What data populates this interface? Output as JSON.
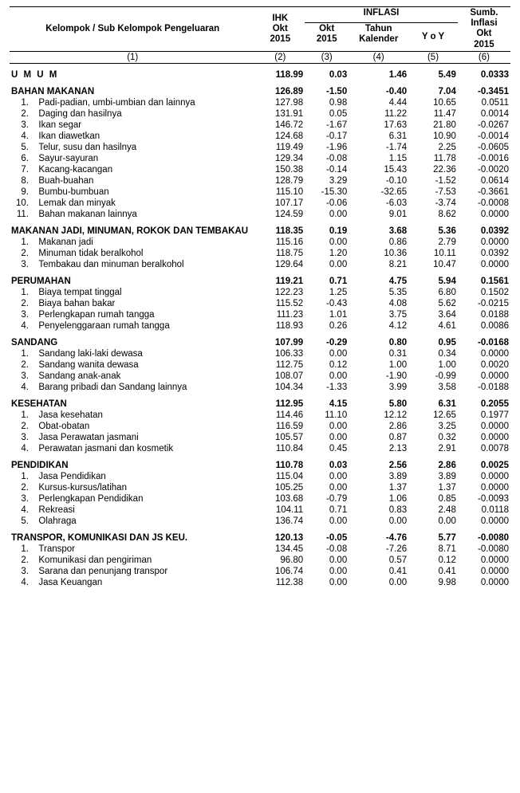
{
  "headers": {
    "groupLabel": "Kelompok / Sub Kelompok Pengeluaran",
    "ihk": "IHK\nOkt\n2015",
    "inflasiTop": "INFLASI",
    "okt": "Okt\n2015",
    "kalender": "Tahun\nKalender",
    "yoy": "Y o Y",
    "sumb": "Sumb.\nInflasi\nOkt\n2015",
    "colnums": [
      "(1)",
      "(2)",
      "(3)",
      "(4)",
      "(5)",
      "(6)"
    ]
  },
  "umum": {
    "label": "U M U M",
    "v": [
      "118.99",
      "0.03",
      "1.46",
      "5.49",
      "0.0333"
    ]
  },
  "groups": [
    {
      "label": "BAHAN MAKANAN",
      "v": [
        "126.89",
        "-1.50",
        "-0.40",
        "7.04",
        "-0.3451"
      ],
      "subs": [
        {
          "n": "1.",
          "label": "Padi-padian, umbi-umbian dan lainnya",
          "v": [
            "127.98",
            "0.98",
            "4.44",
            "10.65",
            "0.0511"
          ]
        },
        {
          "n": "2.",
          "label": "Daging dan hasilnya",
          "v": [
            "131.91",
            "0.05",
            "11.22",
            "11.47",
            "0.0014"
          ]
        },
        {
          "n": "3.",
          "label": "Ikan segar",
          "v": [
            "146.72",
            "-1.67",
            "17.63",
            "21.80",
            "-0.0267"
          ]
        },
        {
          "n": "4.",
          "label": "Ikan diawetkan",
          "v": [
            "124.68",
            "-0.17",
            "6.31",
            "10.90",
            "-0.0014"
          ]
        },
        {
          "n": "5.",
          "label": "Telur, susu dan hasilnya",
          "v": [
            "119.49",
            "-1.96",
            "-1.74",
            "2.25",
            "-0.0605"
          ]
        },
        {
          "n": "6.",
          "label": "Sayur-sayuran",
          "v": [
            "129.34",
            "-0.08",
            "1.15",
            "11.78",
            "-0.0016"
          ]
        },
        {
          "n": "7.",
          "label": "Kacang-kacangan",
          "v": [
            "150.38",
            "-0.14",
            "15.43",
            "22.36",
            "-0.0020"
          ]
        },
        {
          "n": "8.",
          "label": "Buah-buahan",
          "v": [
            "128.79",
            "3.29",
            "-0.10",
            "-1.52",
            "0.0614"
          ]
        },
        {
          "n": "9.",
          "label": "Bumbu-bumbuan",
          "v": [
            "115.10",
            "-15.30",
            "-32.65",
            "-7.53",
            "-0.3661"
          ]
        },
        {
          "n": "10.",
          "label": "Lemak dan minyak",
          "v": [
            "107.17",
            "-0.06",
            "-6.03",
            "-3.74",
            "-0.0008"
          ]
        },
        {
          "n": "11.",
          "label": "Bahan makanan lainnya",
          "v": [
            "124.59",
            "0.00",
            "9.01",
            "8.62",
            "0.0000"
          ]
        }
      ]
    },
    {
      "label": "MAKANAN JADI, MINUMAN, ROKOK DAN TEMBAKAU",
      "v": [
        "118.35",
        "0.19",
        "3.68",
        "5.36",
        "0.0392"
      ],
      "subs": [
        {
          "n": "1.",
          "label": "Makanan jadi",
          "v": [
            "115.16",
            "0.00",
            "0.86",
            "2.79",
            "0.0000"
          ]
        },
        {
          "n": "2.",
          "label": "Minuman tidak beralkohol",
          "v": [
            "118.75",
            "1.20",
            "10.36",
            "10.11",
            "0.0392"
          ]
        },
        {
          "n": "3.",
          "label": "Tembakau dan minuman beralkohol",
          "v": [
            "129.64",
            "0.00",
            "8.21",
            "10.47",
            "0.0000"
          ]
        }
      ]
    },
    {
      "label": "PERUMAHAN",
      "v": [
        "119.21",
        "0.71",
        "4.75",
        "5.94",
        "0.1561"
      ],
      "subs": [
        {
          "n": "1.",
          "label": "Biaya tempat tinggal",
          "v": [
            "122.23",
            "1.25",
            "5.35",
            "6.80",
            "0.1502"
          ]
        },
        {
          "n": "2.",
          "label": "Biaya bahan bakar",
          "v": [
            "115.52",
            "-0.43",
            "4.08",
            "5.62",
            "-0.0215"
          ]
        },
        {
          "n": "3.",
          "label": "Perlengkapan rumah tangga",
          "v": [
            "111.23",
            "1.01",
            "3.75",
            "3.64",
            "0.0188"
          ]
        },
        {
          "n": "4.",
          "label": "Penyelenggaraan rumah tangga",
          "v": [
            "118.93",
            "0.26",
            "4.12",
            "4.61",
            "0.0086"
          ]
        }
      ]
    },
    {
      "label": "SANDANG",
      "v": [
        "107.99",
        "-0.29",
        "0.80",
        "0.95",
        "-0.0168"
      ],
      "subs": [
        {
          "n": "1.",
          "label": "Sandang laki-laki dewasa",
          "v": [
            "106.33",
            "0.00",
            "0.31",
            "0.34",
            "0.0000"
          ]
        },
        {
          "n": "2.",
          "label": "Sandang wanita dewasa",
          "v": [
            "112.75",
            "0.12",
            "1.00",
            "1.00",
            "0.0020"
          ]
        },
        {
          "n": "3.",
          "label": "Sandang anak-anak",
          "v": [
            "108.07",
            "0.00",
            "-1.90",
            "-0.99",
            "0.0000"
          ]
        },
        {
          "n": "4.",
          "label": "Barang pribadi dan Sandang lainnya",
          "v": [
            "104.34",
            "-1.33",
            "3.99",
            "3.58",
            "-0.0188"
          ]
        }
      ]
    },
    {
      "label": "KESEHATAN",
      "v": [
        "112.95",
        "4.15",
        "5.80",
        "6.31",
        "0.2055"
      ],
      "subs": [
        {
          "n": "1.",
          "label": "Jasa kesehatan",
          "v": [
            "114.46",
            "11.10",
            "12.12",
            "12.65",
            "0.1977"
          ]
        },
        {
          "n": "2.",
          "label": "Obat-obatan",
          "v": [
            "116.59",
            "0.00",
            "2.86",
            "3.25",
            "0.0000"
          ]
        },
        {
          "n": "3.",
          "label": "Jasa Perawatan jasmani",
          "v": [
            "105.57",
            "0.00",
            "0.87",
            "0.32",
            "0.0000"
          ]
        },
        {
          "n": "4.",
          "label": "Perawatan jasmani dan kosmetik",
          "v": [
            "110.84",
            "0.45",
            "2.13",
            "2.91",
            "0.0078"
          ]
        }
      ]
    },
    {
      "label": "PENDIDIKAN",
      "v": [
        "110.78",
        "0.03",
        "2.56",
        "2.86",
        "0.0025"
      ],
      "subs": [
        {
          "n": "1.",
          "label": "Jasa Pendidikan",
          "v": [
            "115.04",
            "0.00",
            "3.89",
            "3.89",
            "0.0000"
          ]
        },
        {
          "n": "2.",
          "label": "Kursus-kursus/latihan",
          "v": [
            "105.25",
            "0.00",
            "1.37",
            "1.37",
            "0.0000"
          ]
        },
        {
          "n": "3.",
          "label": "Perlengkapan Pendidikan",
          "v": [
            "103.68",
            "-0.79",
            "1.06",
            "0.85",
            "-0.0093"
          ]
        },
        {
          "n": "4.",
          "label": "Rekreasi",
          "v": [
            "104.11",
            "0.71",
            "0.83",
            "2.48",
            "0.0118"
          ]
        },
        {
          "n": "5.",
          "label": "Olahraga",
          "v": [
            "136.74",
            "0.00",
            "0.00",
            "0.00",
            "0.0000"
          ]
        }
      ]
    },
    {
      "label": "TRANSPOR, KOMUNIKASI DAN JS KEU.",
      "v": [
        "120.13",
        "-0.05",
        "-4.76",
        "5.77",
        "-0.0080"
      ],
      "subs": [
        {
          "n": "1.",
          "label": "Transpor",
          "v": [
            "134.45",
            "-0.08",
            "-7.26",
            "8.71",
            "-0.0080"
          ]
        },
        {
          "n": "2.",
          "label": "Komunikasi dan pengiriman",
          "v": [
            "96.80",
            "0.00",
            "0.57",
            "0.12",
            "0.0000"
          ]
        },
        {
          "n": "3.",
          "label": "Sarana dan penunjang transpor",
          "v": [
            "106.74",
            "0.00",
            "0.41",
            "0.41",
            "0.0000"
          ]
        },
        {
          "n": "4.",
          "label": "Jasa Keuangan",
          "v": [
            "112.38",
            "0.00",
            "0.00",
            "9.98",
            "0.0000"
          ]
        }
      ]
    }
  ]
}
